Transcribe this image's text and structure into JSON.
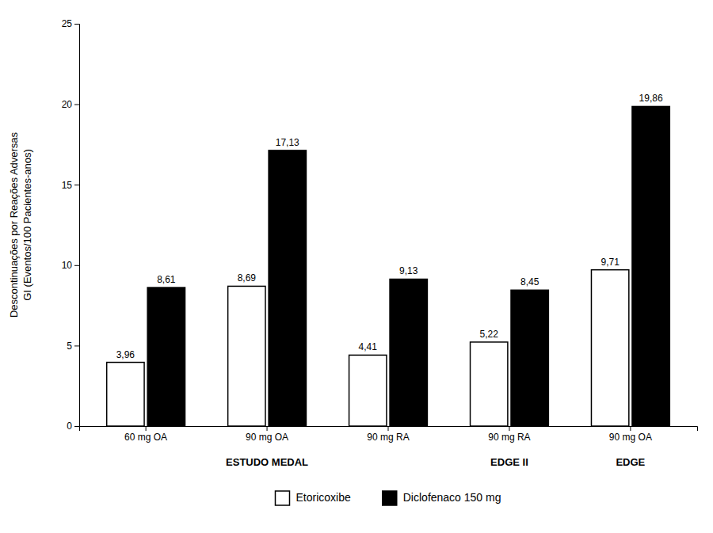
{
  "chart_data": {
    "type": "bar",
    "categories": [
      "60 mg OA",
      "90 mg OA",
      "90 mg RA",
      "90 mg RA",
      "90 mg OA"
    ],
    "series": [
      {
        "name": "Etoricoxibe",
        "color": "#ffffff",
        "values": [
          3.96,
          8.69,
          4.41,
          5.22,
          9.71
        ],
        "value_labels": [
          "3,96",
          "8,69",
          "4,41",
          "5,22",
          "9,71"
        ]
      },
      {
        "name": "Diclofenaco 150 mg",
        "color": "#000000",
        "values": [
          8.61,
          17.13,
          9.13,
          8.45,
          19.86
        ],
        "value_labels": [
          "8,61",
          "17,13",
          "9,13",
          "8,45",
          "19,86"
        ]
      }
    ],
    "ylabel": "Descontinuações por Reações Adversas\nGI (Eventos/100 Pacientes-anos)",
    "ylim": [
      0,
      25
    ],
    "yticks": [
      0,
      5,
      10,
      15,
      20,
      25
    ],
    "annotations": [
      {
        "text": "ESTUDO MEDAL",
        "x": 1.0
      },
      {
        "text": "EDGE II",
        "x": 3.0
      },
      {
        "text": "EDGE",
        "x": 4.0
      }
    ],
    "data_labels": true,
    "legend": "bottom",
    "grid": false
  }
}
